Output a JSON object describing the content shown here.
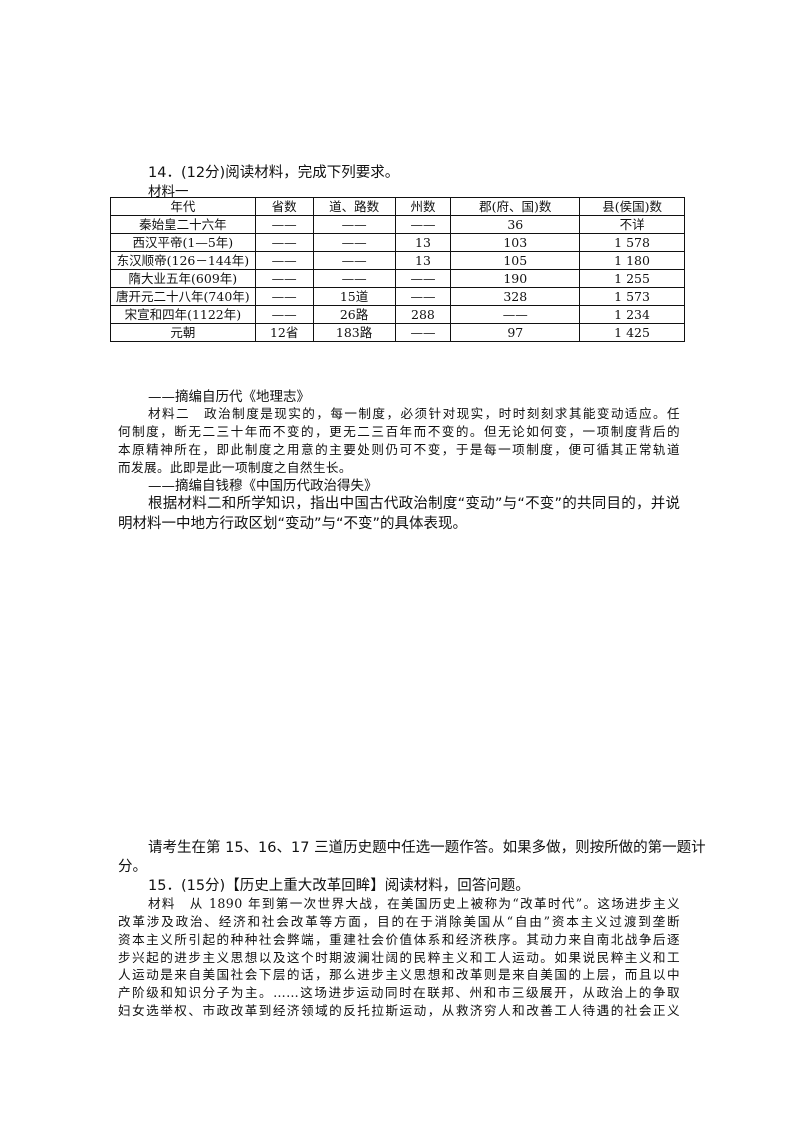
{
  "q14": {
    "title": "14．(12分)阅读材料，完成下列要求。",
    "material1_label": "材料一",
    "table": {
      "headers": [
        "年代",
        "省数",
        "道、路数",
        "州数",
        "郡(府、国)数",
        "县(侯国)数"
      ],
      "rows": [
        [
          "秦始皇二十六年",
          "——",
          "——",
          "——",
          "36",
          "不详"
        ],
        [
          "西汉平帝(1—5年)",
          "——",
          "——",
          "13",
          "103",
          "1 578"
        ],
        [
          "东汉顺帝(126－144年)",
          "——",
          "——",
          "13",
          "105",
          "1 180"
        ],
        [
          "隋大业五年(609年)",
          "——",
          "——",
          "——",
          "190",
          "1 255"
        ],
        [
          "唐开元二十八年(740年)",
          "——",
          "15道",
          "——",
          "328",
          "1 573"
        ],
        [
          "宋宣和四年(1122年)",
          "——",
          "26路",
          "288",
          "——",
          "1 234"
        ],
        [
          "元朝",
          "12省",
          "183路",
          "——",
          "97",
          "1 425"
        ]
      ]
    },
    "source1": "——摘编自历代《地理志》",
    "material2_lines": [
      "材料二　政治制度是现实的，每一制度，必须针对现实，时时刻刻求其能变动适应。任",
      "何制度，断无二三十年而不变的，更无二三百年而不变的。但无论如何变，一项制度背后的",
      "本原精神所在，即此制度之用意的主要处则仍可不变，于是每一项制度，便可循其正常轨道",
      "而发展。此即是此一项制度之自然生长。"
    ],
    "source2": "——摘编自钱穆《中国历代政治得失》",
    "question_lines": [
      "根据材料二和所学知识，指出中国古代政治制度“变动”与“不变”的共同目的，并说",
      "明材料一中地方行政区划“变动”与“不变”的具体表现。"
    ]
  },
  "instruction_lines": [
    "请考生在第 15、16、17 三道历史题中任选一题作答。如果多做，则按所做的第一题计",
    "分。"
  ],
  "q15": {
    "title": "15．(15分)【历史上重大改革回眸】阅读材料，回答问题。",
    "material_lines": [
      "材料　从 1890 年到第一次世界大战，在美国历史上被称为“改革时代”。这场进步主义",
      "改革涉及政治、经济和社会改革等方面，目的在于消除美国从“自由”资本主义过渡到垄断",
      "资本主义所引起的种种社会弊端，重建社会价值体系和经济秩序。其动力来自南北战争后逐",
      "步兴起的进步主义思想以及这个时期波澜壮阔的民粹主义和工人运动。如果说民粹主义和工",
      "人运动是来自美国社会下层的话，那么进步主义思想和改革则是来自美国的上层，而且以中",
      "产阶级和知识分子为主。……这场进步运动同时在联邦、州和市三级展开，从政治上的争取",
      "妇女选举权、市政改革到经济领域的反托拉斯运动，从救济穷人和改善工人待遇的社会正义"
    ]
  }
}
